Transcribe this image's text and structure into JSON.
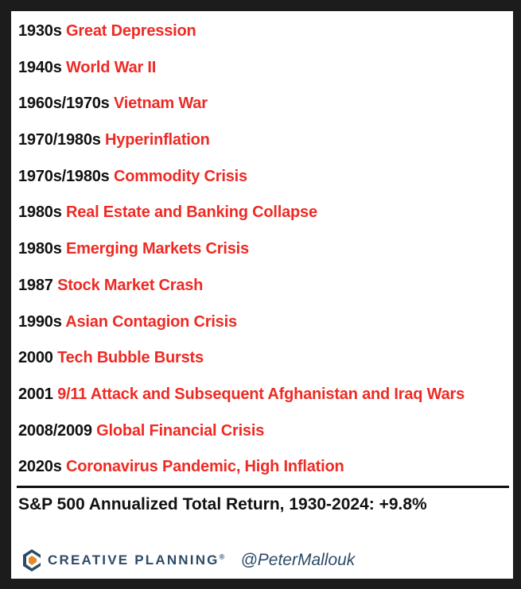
{
  "list": {
    "items": [
      {
        "period": "1930s",
        "event": "Great Depression"
      },
      {
        "period": "1940s",
        "event": "World War II"
      },
      {
        "period": "1960s/1970s",
        "event": "Vietnam War"
      },
      {
        "period": "1970/1980s",
        "event": "Hyperinflation"
      },
      {
        "period": "1970s/1980s",
        "event": "Commodity Crisis"
      },
      {
        "period": "1980s",
        "event": "Real Estate and Banking Collapse"
      },
      {
        "period": "1980s",
        "event": "Emerging Markets Crisis"
      },
      {
        "period": "1987",
        "event": "Stock Market Crash"
      },
      {
        "period": "1990s",
        "event": "Asian Contagion Crisis"
      },
      {
        "period": "2000",
        "event": "Tech Bubble Bursts"
      },
      {
        "period": "2001",
        "event": "9/11 Attack and Subsequent Afghanistan and Iraq Wars"
      },
      {
        "period": "2008/2009",
        "event": "Global Financial Crisis"
      },
      {
        "period": "2020s",
        "event": "Coronavirus Pandemic, High Inflation"
      }
    ]
  },
  "summary": "S&P 500 Annualized Total Return, 1930-2024: +9.8%",
  "footer": {
    "logo": "CREATIVE PLANNING",
    "logo_mark": "®",
    "handle": "@PeterMallouk"
  }
}
